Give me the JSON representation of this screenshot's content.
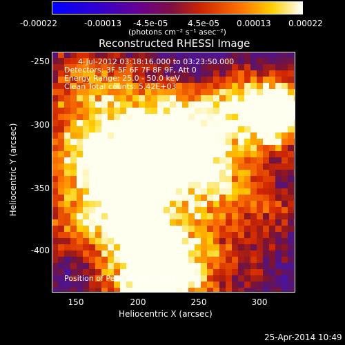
{
  "colorbar": {
    "tick_labels": [
      "-0.00022",
      "-0.00013",
      "-4.5e-05",
      "4.5e-05",
      "0.00013",
      "0.00022"
    ],
    "unit_label": "(photons cm⁻² s⁻¹ asec⁻²)",
    "colors": [
      "#0000ff",
      "#4b00b4",
      "#7a1060",
      "#d33000",
      "#ff8000",
      "#ffff00",
      "#ffffff"
    ]
  },
  "plot": {
    "title": "Reconstructed RHESSI Image",
    "xlabel": "Heliocentric X (arcsec)",
    "ylabel": "Heliocentric Y (arcsec)",
    "x_ticks": [
      "150",
      "200",
      "250",
      "300"
    ],
    "y_ticks": [
      "-250",
      "-300",
      "-350",
      "-400"
    ],
    "overlay": {
      "time_range": "4-Jul-2012 03:18:16.000 to 03:23:50.000",
      "detectors": "Detectors: 3F 5F 6F 7F 8F 9F, Att 0",
      "energy": "Energy Range: 25.0 - 50.0 keV",
      "method": "Clean     Total counts: 5.42E+03"
    },
    "peak_label": "Position of Peak = [302,-290]"
  },
  "footer": {
    "date": "25-Apr-2014 10:49"
  }
}
